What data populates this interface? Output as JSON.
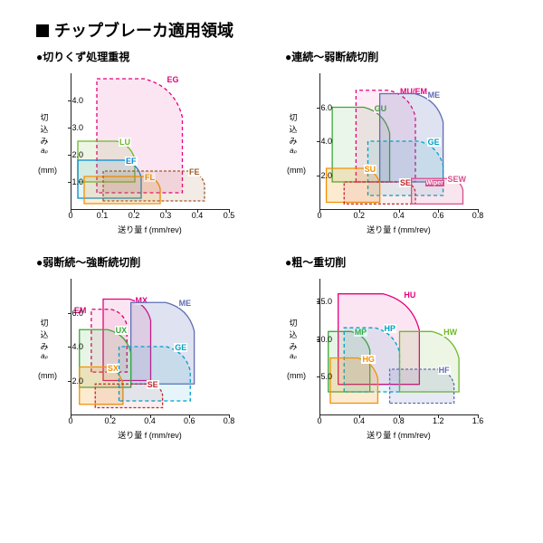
{
  "page_title": "チップブレーカ適用領域",
  "axis_y_label": "切込み",
  "axis_y_symbol": "aₚ",
  "axis_y_unit": "(mm)",
  "axis_x_label": "送り量 f (mm/rev)",
  "charts": [
    {
      "title": "●切りくず処理重視",
      "xlim": [
        0,
        0.5
      ],
      "xticks": [
        "0",
        "0.1",
        "0.2",
        "0.3",
        "0.4",
        "0.5"
      ],
      "ylim": [
        0,
        5
      ],
      "yticks": [
        "1.0",
        "2.0",
        "3.0",
        "4.0"
      ],
      "regions": [
        {
          "name": "EG",
          "x": [
            0.08,
            0.35
          ],
          "y": [
            0.6,
            4.8
          ],
          "color": "#e6007e",
          "fill": "rgba(230,0,126,.10)",
          "dash": "4,3"
        },
        {
          "name": "LU",
          "x": [
            0.02,
            0.2
          ],
          "y": [
            1.0,
            2.5
          ],
          "color": "#6eb92b",
          "fill": "rgba(110,185,43,.12)"
        },
        {
          "name": "EF",
          "x": [
            0.02,
            0.22
          ],
          "y": [
            0.4,
            1.8
          ],
          "color": "#008dd0",
          "fill": "rgba(0,141,208,.10)"
        },
        {
          "name": "FL",
          "x": [
            0.04,
            0.28
          ],
          "y": [
            0.2,
            1.2
          ],
          "color": "#f29100",
          "fill": "rgba(242,145,0,.15)"
        },
        {
          "name": "FE",
          "x": [
            0.1,
            0.42
          ],
          "y": [
            0.3,
            1.4
          ],
          "color": "#a05a2c",
          "fill": "rgba(160,90,44,.12)",
          "dash": "3,2"
        }
      ]
    },
    {
      "title": "●連続～弱断続切削",
      "xlim": [
        0,
        0.8
      ],
      "xticks": [
        "0",
        "0.2",
        "0.4",
        "0.6",
        "0.8"
      ],
      "ylim": [
        0,
        8
      ],
      "yticks": [
        "2.0",
        "4.0",
        "6.0"
      ],
      "regions": [
        {
          "name": "GU",
          "x": [
            0.06,
            0.35
          ],
          "y": [
            1.6,
            6.0
          ],
          "color": "#3aa935",
          "fill": "rgba(58,169,53,.10)"
        },
        {
          "name": "MU/EM",
          "x": [
            0.18,
            0.48
          ],
          "y": [
            1.6,
            7.0
          ],
          "color": "#e6007e",
          "fill": "rgba(230,0,126,.08)",
          "dash": "4,3"
        },
        {
          "name": "ME",
          "x": [
            0.3,
            0.62
          ],
          "y": [
            1.6,
            6.8
          ],
          "color": "#5f6db3",
          "fill": "rgba(95,109,179,.20)"
        },
        {
          "name": "GE",
          "x": [
            0.24,
            0.62
          ],
          "y": [
            0.8,
            4.0
          ],
          "color": "#00a0c6",
          "fill": "rgba(0,160,198,.10)",
          "dash": "4,3"
        },
        {
          "name": "SU",
          "x": [
            0.03,
            0.3
          ],
          "y": [
            0.4,
            2.4
          ],
          "color": "#f29100",
          "fill": "rgba(242,145,0,.18)"
        },
        {
          "name": "SE",
          "x": [
            0.12,
            0.48
          ],
          "y": [
            0.3,
            1.6
          ],
          "color": "#c1272d",
          "fill": "rgba(193,39,45,.08)",
          "dash": "3,2"
        },
        {
          "name": "SEW",
          "x": [
            0.46,
            0.72
          ],
          "y": [
            0.3,
            1.8
          ],
          "color": "#d94f8e",
          "fill": "rgba(217,79,142,.15)",
          "extra": "Wiper"
        }
      ]
    },
    {
      "title": "●弱断続～強断続切削",
      "xlim": [
        0,
        0.8
      ],
      "xticks": [
        "0",
        "0.2",
        "0.4",
        "0.6",
        "0.8"
      ],
      "ylim": [
        0,
        8
      ],
      "yticks": [
        "2.0",
        "4.0",
        "6.0"
      ],
      "regions": [
        {
          "name": "EM",
          "x": [
            0.1,
            0.28
          ],
          "y": [
            2.5,
            6.2
          ],
          "color": "#d6006c",
          "fill": "rgba(214,0,108,.08)",
          "dash": "4,3"
        },
        {
          "name": "MX",
          "x": [
            0.16,
            0.4
          ],
          "y": [
            2.0,
            6.8
          ],
          "color": "#e6007e",
          "fill": "rgba(230,0,126,.10)"
        },
        {
          "name": "ME",
          "x": [
            0.3,
            0.62
          ],
          "y": [
            1.8,
            6.6
          ],
          "color": "#5f6db3",
          "fill": "rgba(95,109,179,.20)"
        },
        {
          "name": "UX",
          "x": [
            0.04,
            0.3
          ],
          "y": [
            1.6,
            5.0
          ],
          "color": "#3aa935",
          "fill": "rgba(58,169,53,.12)"
        },
        {
          "name": "SX",
          "x": [
            0.04,
            0.26
          ],
          "y": [
            0.6,
            2.8
          ],
          "color": "#f29100",
          "fill": "rgba(242,145,0,.18)"
        },
        {
          "name": "GE",
          "x": [
            0.24,
            0.6
          ],
          "y": [
            0.8,
            4.0
          ],
          "color": "#00a0c6",
          "fill": "rgba(0,160,198,.10)",
          "dash": "4,3"
        },
        {
          "name": "SE",
          "x": [
            0.12,
            0.46
          ],
          "y": [
            0.4,
            1.8
          ],
          "color": "#c1272d",
          "fill": "rgba(193,39,45,.08)",
          "dash": "3,2"
        }
      ]
    },
    {
      "title": "●粗～重切削",
      "xlim": [
        0,
        1.6
      ],
      "xticks": [
        "0",
        "0.4",
        "0.8",
        "1.2",
        "1.6"
      ],
      "ylim": [
        0,
        18
      ],
      "yticks": [
        "5.0",
        "10.0",
        "15.0"
      ],
      "regions": [
        {
          "name": "HU",
          "x": [
            0.18,
            1.0
          ],
          "y": [
            4.0,
            16.0
          ],
          "color": "#e6007e",
          "fill": "rgba(230,0,126,.10)"
        },
        {
          "name": "MP",
          "x": [
            0.08,
            0.5
          ],
          "y": [
            3.0,
            11.0
          ],
          "color": "#3aa935",
          "fill": "rgba(58,169,53,.12)"
        },
        {
          "name": "HP",
          "x": [
            0.24,
            0.8
          ],
          "y": [
            3.0,
            11.5
          ],
          "color": "#00a0c6",
          "fill": "rgba(0,160,198,.10)",
          "dash": "4,3"
        },
        {
          "name": "HW",
          "x": [
            0.8,
            1.4
          ],
          "y": [
            3.0,
            11.0
          ],
          "color": "#6eb92b",
          "fill": "rgba(110,185,43,.12)"
        },
        {
          "name": "HG",
          "x": [
            0.1,
            0.58
          ],
          "y": [
            1.5,
            7.5
          ],
          "color": "#f29100",
          "fill": "rgba(242,145,0,.18)"
        },
        {
          "name": "HF",
          "x": [
            0.7,
            1.35
          ],
          "y": [
            1.5,
            6.0
          ],
          "color": "#5f6db3",
          "fill": "rgba(95,109,179,.15)",
          "dash": "3,2"
        }
      ]
    }
  ]
}
